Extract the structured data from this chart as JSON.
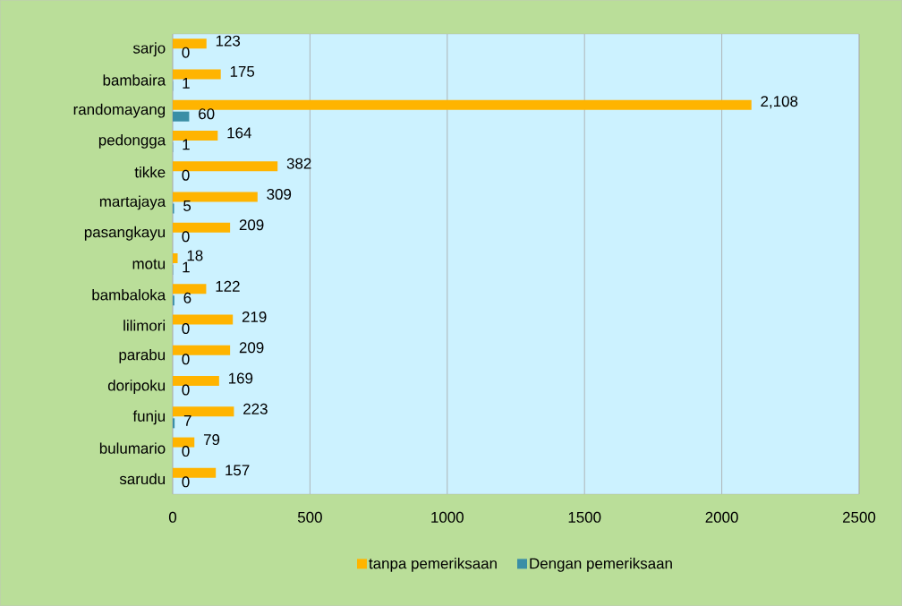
{
  "chart_data": {
    "type": "bar",
    "orientation": "horizontal",
    "categories": [
      "sarjo",
      "bambaira",
      "randomayang",
      "pedongga",
      "tikke",
      "martajaya",
      "pasangkayu",
      "motu",
      "bambaloka",
      "lilimori",
      "parabu",
      "doripoku",
      "funju",
      "bulumario",
      "sarudu"
    ],
    "series": [
      {
        "name": "tanpa pemeriksaan",
        "color": "#ffb400",
        "values": [
          123,
          175,
          2108,
          164,
          382,
          309,
          209,
          18,
          122,
          219,
          209,
          169,
          223,
          79,
          157
        ],
        "value_labels": [
          "123",
          "175",
          "2,108",
          "164",
          "382",
          "309",
          "209",
          "18",
          "122",
          "219",
          "209",
          "169",
          "223",
          "79",
          "157"
        ]
      },
      {
        "name": "Dengan pemeriksaan",
        "color": "#3a8ea6",
        "values": [
          0,
          1,
          60,
          1,
          0,
          5,
          0,
          1,
          6,
          0,
          0,
          0,
          7,
          0,
          0
        ],
        "value_labels": [
          "0",
          "1",
          "60",
          "1",
          "0",
          "5",
          "0",
          "1",
          "6",
          "0",
          "0",
          "0",
          "7",
          "0",
          "0"
        ]
      }
    ],
    "xlim": [
      0,
      2500
    ],
    "xticks": [
      0,
      500,
      1000,
      1500,
      2000,
      2500
    ],
    "grid": "x",
    "legend": "bottom"
  }
}
